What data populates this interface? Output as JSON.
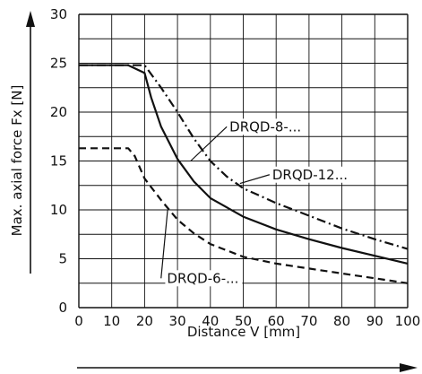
{
  "chart_data": {
    "type": "line",
    "xlabel": "Distance V [mm]",
    "ylabel": "Max. axial force Fx [N]",
    "xlim": [
      0,
      100
    ],
    "ylim": [
      0,
      30
    ],
    "grid": true,
    "x_ticks": [
      0,
      10,
      20,
      30,
      40,
      50,
      60,
      70,
      80,
      90,
      100
    ],
    "y_ticks": [
      0,
      5,
      10,
      15,
      20,
      25,
      30
    ],
    "series": [
      {
        "name": "DRQD-8-...",
        "style": "dash-dot",
        "points": [
          [
            0,
            24.8
          ],
          [
            20,
            24.8
          ],
          [
            25,
            22.5
          ],
          [
            30,
            20
          ],
          [
            35,
            17.3
          ],
          [
            40,
            15
          ],
          [
            45,
            13.4
          ],
          [
            50,
            12.2
          ],
          [
            60,
            10.7
          ],
          [
            70,
            9.4
          ],
          [
            80,
            8.1
          ],
          [
            90,
            7.0
          ],
          [
            100,
            6.0
          ]
        ]
      },
      {
        "name": "DRQD-12...",
        "style": "solid",
        "points": [
          [
            0,
            24.8
          ],
          [
            15,
            24.8
          ],
          [
            20,
            24.0
          ],
          [
            22,
            21.5
          ],
          [
            25,
            18.5
          ],
          [
            30,
            15.2
          ],
          [
            35,
            12.9
          ],
          [
            40,
            11.2
          ],
          [
            50,
            9.3
          ],
          [
            60,
            8.0
          ],
          [
            70,
            7.0
          ],
          [
            80,
            6.1
          ],
          [
            90,
            5.3
          ],
          [
            100,
            4.5
          ]
        ]
      },
      {
        "name": "DRQD-6-...",
        "style": "dashed",
        "points": [
          [
            0,
            16.3
          ],
          [
            15,
            16.3
          ],
          [
            17,
            15.5
          ],
          [
            20,
            13.2
          ],
          [
            25,
            11.0
          ],
          [
            30,
            9.0
          ],
          [
            35,
            7.6
          ],
          [
            40,
            6.5
          ],
          [
            50,
            5.2
          ],
          [
            60,
            4.5
          ],
          [
            70,
            4.0
          ],
          [
            80,
            3.5
          ],
          [
            90,
            3.0
          ],
          [
            100,
            2.5
          ]
        ]
      }
    ],
    "annotations": [
      {
        "text": "DRQD-8-...",
        "series": "DRQD-8-..."
      },
      {
        "text": "DRQD-12...",
        "series": "DRQD-12..."
      },
      {
        "text": "DRQD-6-...",
        "series": "DRQD-6-..."
      }
    ]
  }
}
